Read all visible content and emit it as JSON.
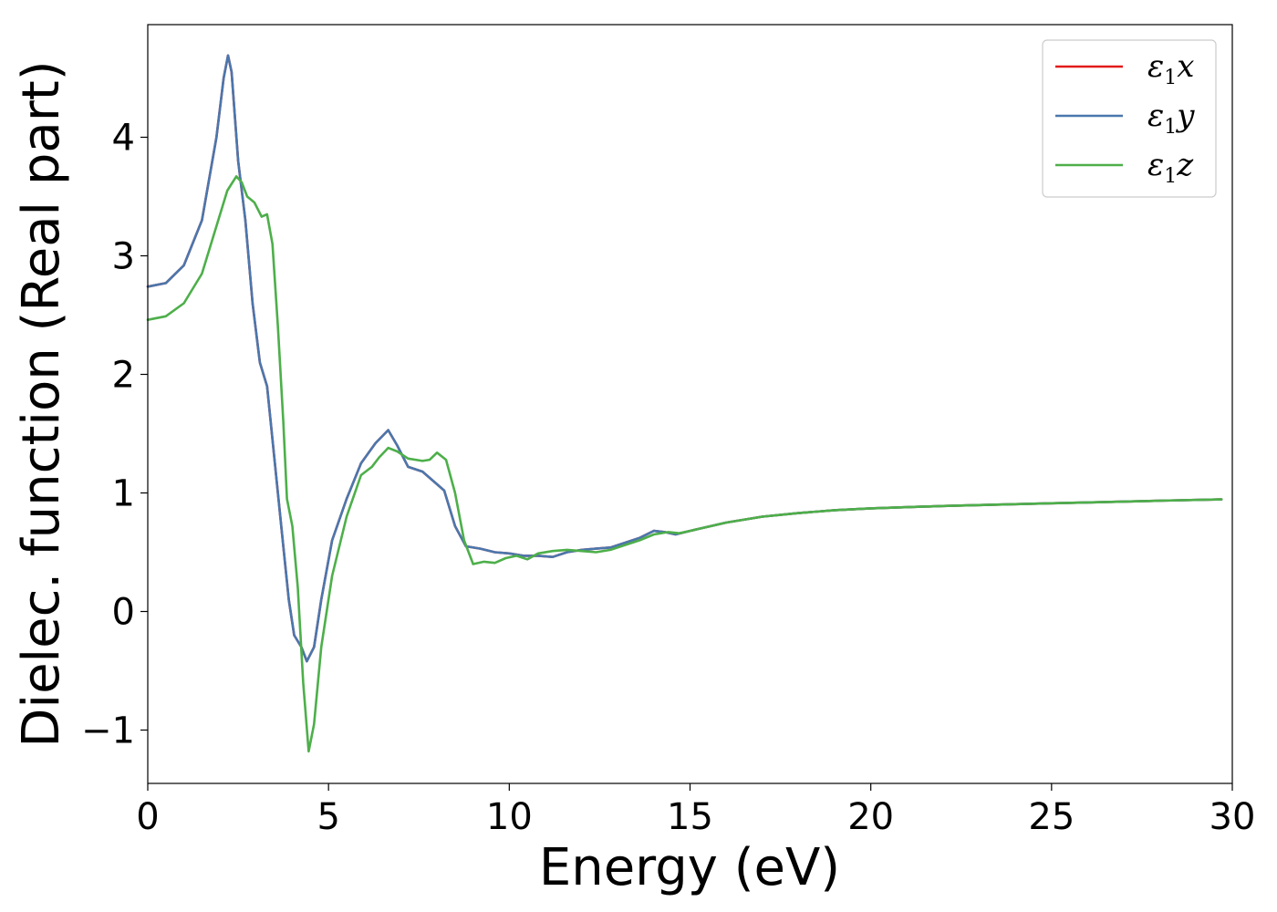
{
  "chart_data": {
    "type": "line",
    "title": "",
    "xlabel": "Energy (eV)",
    "ylabel": "Dielec. function (Real part)",
    "xlim": [
      0,
      30
    ],
    "ylim": [
      -1.45,
      4.95
    ],
    "xticks": [
      0,
      5,
      10,
      15,
      20,
      25,
      30
    ],
    "yticks": [
      -1,
      0,
      1,
      2,
      3,
      4
    ],
    "xtick_labels": [
      "0",
      "5",
      "10",
      "15",
      "20",
      "25",
      "30"
    ],
    "ytick_labels": [
      "−1",
      "0",
      "1",
      "2",
      "3",
      "4"
    ],
    "grid": false,
    "legend_position": "top-right",
    "series": [
      {
        "name": "ε1x",
        "legend_main": "ε",
        "legend_sub": "1",
        "legend_tail": "x",
        "color": "#e41a1c",
        "points": [
          [
            0,
            2.74
          ],
          [
            0.5,
            2.77
          ],
          [
            1.0,
            2.92
          ],
          [
            1.5,
            3.3
          ],
          [
            1.9,
            4.0
          ],
          [
            2.1,
            4.5
          ],
          [
            2.22,
            4.69
          ],
          [
            2.32,
            4.55
          ],
          [
            2.5,
            3.8
          ],
          [
            2.7,
            3.3
          ],
          [
            2.9,
            2.6
          ],
          [
            3.1,
            2.1
          ],
          [
            3.3,
            1.9
          ],
          [
            3.5,
            1.3
          ],
          [
            3.7,
            0.7
          ],
          [
            3.9,
            0.1
          ],
          [
            4.05,
            -0.2
          ],
          [
            4.25,
            -0.3
          ],
          [
            4.4,
            -0.42
          ],
          [
            4.6,
            -0.3
          ],
          [
            4.8,
            0.1
          ],
          [
            5.1,
            0.6
          ],
          [
            5.5,
            0.95
          ],
          [
            5.9,
            1.25
          ],
          [
            6.3,
            1.42
          ],
          [
            6.65,
            1.53
          ],
          [
            6.9,
            1.4
          ],
          [
            7.2,
            1.22
          ],
          [
            7.6,
            1.18
          ],
          [
            7.9,
            1.1
          ],
          [
            8.2,
            1.02
          ],
          [
            8.5,
            0.72
          ],
          [
            8.8,
            0.55
          ],
          [
            9.2,
            0.53
          ],
          [
            9.6,
            0.5
          ],
          [
            10.0,
            0.49
          ],
          [
            10.4,
            0.47
          ],
          [
            10.8,
            0.47
          ],
          [
            11.2,
            0.46
          ],
          [
            11.6,
            0.5
          ],
          [
            12.0,
            0.52
          ],
          [
            12.4,
            0.53
          ],
          [
            12.8,
            0.54
          ],
          [
            13.2,
            0.58
          ],
          [
            13.6,
            0.62
          ],
          [
            14.0,
            0.68
          ],
          [
            14.3,
            0.67
          ],
          [
            14.6,
            0.65
          ],
          [
            15.0,
            0.68
          ],
          [
            16.0,
            0.75
          ],
          [
            17.0,
            0.8
          ],
          [
            18.0,
            0.83
          ],
          [
            19.0,
            0.855
          ],
          [
            20.0,
            0.87
          ],
          [
            22.0,
            0.89
          ],
          [
            24.0,
            0.905
          ],
          [
            26.0,
            0.92
          ],
          [
            28.0,
            0.935
          ],
          [
            29.7,
            0.945
          ]
        ]
      },
      {
        "name": "ε1y",
        "legend_main": "ε",
        "legend_sub": "1",
        "legend_tail": "y",
        "color": "#4a77ad",
        "points": [
          [
            0,
            2.74
          ],
          [
            0.5,
            2.77
          ],
          [
            1.0,
            2.92
          ],
          [
            1.5,
            3.3
          ],
          [
            1.9,
            4.0
          ],
          [
            2.1,
            4.5
          ],
          [
            2.22,
            4.69
          ],
          [
            2.32,
            4.55
          ],
          [
            2.5,
            3.8
          ],
          [
            2.7,
            3.3
          ],
          [
            2.9,
            2.6
          ],
          [
            3.1,
            2.1
          ],
          [
            3.3,
            1.9
          ],
          [
            3.5,
            1.3
          ],
          [
            3.7,
            0.7
          ],
          [
            3.9,
            0.1
          ],
          [
            4.05,
            -0.2
          ],
          [
            4.25,
            -0.3
          ],
          [
            4.4,
            -0.42
          ],
          [
            4.6,
            -0.3
          ],
          [
            4.8,
            0.1
          ],
          [
            5.1,
            0.6
          ],
          [
            5.5,
            0.95
          ],
          [
            5.9,
            1.25
          ],
          [
            6.3,
            1.42
          ],
          [
            6.65,
            1.53
          ],
          [
            6.9,
            1.4
          ],
          [
            7.2,
            1.22
          ],
          [
            7.6,
            1.18
          ],
          [
            7.9,
            1.1
          ],
          [
            8.2,
            1.02
          ],
          [
            8.5,
            0.72
          ],
          [
            8.8,
            0.55
          ],
          [
            9.2,
            0.53
          ],
          [
            9.6,
            0.5
          ],
          [
            10.0,
            0.49
          ],
          [
            10.4,
            0.47
          ],
          [
            10.8,
            0.47
          ],
          [
            11.2,
            0.46
          ],
          [
            11.6,
            0.5
          ],
          [
            12.0,
            0.52
          ],
          [
            12.4,
            0.53
          ],
          [
            12.8,
            0.54
          ],
          [
            13.2,
            0.58
          ],
          [
            13.6,
            0.62
          ],
          [
            14.0,
            0.68
          ],
          [
            14.3,
            0.67
          ],
          [
            14.6,
            0.65
          ],
          [
            15.0,
            0.68
          ],
          [
            16.0,
            0.75
          ],
          [
            17.0,
            0.8
          ],
          [
            18.0,
            0.83
          ],
          [
            19.0,
            0.855
          ],
          [
            20.0,
            0.87
          ],
          [
            22.0,
            0.89
          ],
          [
            24.0,
            0.905
          ],
          [
            26.0,
            0.92
          ],
          [
            28.0,
            0.935
          ],
          [
            29.7,
            0.945
          ]
        ]
      },
      {
        "name": "ε1z",
        "legend_main": "ε",
        "legend_sub": "1",
        "legend_tail": "z",
        "color": "#4daf4a",
        "points": [
          [
            0,
            2.46
          ],
          [
            0.5,
            2.49
          ],
          [
            1.0,
            2.6
          ],
          [
            1.5,
            2.85
          ],
          [
            1.9,
            3.25
          ],
          [
            2.2,
            3.55
          ],
          [
            2.45,
            3.67
          ],
          [
            2.6,
            3.62
          ],
          [
            2.75,
            3.5
          ],
          [
            2.95,
            3.45
          ],
          [
            3.15,
            3.33
          ],
          [
            3.3,
            3.35
          ],
          [
            3.45,
            3.1
          ],
          [
            3.6,
            2.4
          ],
          [
            3.75,
            1.6
          ],
          [
            3.85,
            0.95
          ],
          [
            4.0,
            0.72
          ],
          [
            4.15,
            0.2
          ],
          [
            4.3,
            -0.6
          ],
          [
            4.45,
            -1.18
          ],
          [
            4.6,
            -0.95
          ],
          [
            4.8,
            -0.3
          ],
          [
            5.1,
            0.3
          ],
          [
            5.5,
            0.8
          ],
          [
            5.9,
            1.15
          ],
          [
            6.2,
            1.22
          ],
          [
            6.4,
            1.3
          ],
          [
            6.65,
            1.38
          ],
          [
            6.9,
            1.35
          ],
          [
            7.2,
            1.29
          ],
          [
            7.6,
            1.27
          ],
          [
            7.8,
            1.28
          ],
          [
            8.0,
            1.34
          ],
          [
            8.25,
            1.28
          ],
          [
            8.5,
            1.0
          ],
          [
            8.75,
            0.6
          ],
          [
            9.0,
            0.4
          ],
          [
            9.3,
            0.42
          ],
          [
            9.6,
            0.41
          ],
          [
            9.9,
            0.45
          ],
          [
            10.2,
            0.47
          ],
          [
            10.5,
            0.44
          ],
          [
            10.8,
            0.49
          ],
          [
            11.2,
            0.51
          ],
          [
            11.6,
            0.52
          ],
          [
            12.0,
            0.51
          ],
          [
            12.4,
            0.5
          ],
          [
            12.8,
            0.52
          ],
          [
            13.2,
            0.56
          ],
          [
            13.6,
            0.6
          ],
          [
            14.0,
            0.65
          ],
          [
            14.4,
            0.67
          ],
          [
            14.7,
            0.66
          ],
          [
            15.0,
            0.68
          ],
          [
            16.0,
            0.75
          ],
          [
            17.0,
            0.8
          ],
          [
            18.0,
            0.83
          ],
          [
            19.0,
            0.855
          ],
          [
            20.0,
            0.87
          ],
          [
            22.0,
            0.89
          ],
          [
            24.0,
            0.905
          ],
          [
            26.0,
            0.92
          ],
          [
            28.0,
            0.935
          ],
          [
            29.7,
            0.945
          ]
        ]
      }
    ]
  }
}
